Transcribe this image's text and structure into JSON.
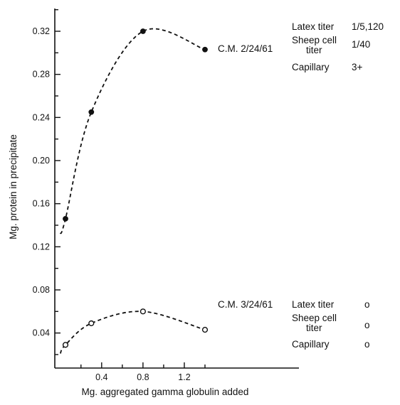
{
  "chart_data": {
    "type": "scatter",
    "title": "",
    "xlabel": "Mg. aggregated gamma globulin added",
    "ylabel": "Mg. protein in precipitate",
    "xlim": [
      0,
      1.8
    ],
    "ylim": [
      0,
      0.34
    ],
    "x_ticks": [
      0.4,
      0.8,
      1.2
    ],
    "x_tick_labels": [
      "0.4",
      "0.8",
      "1.2"
    ],
    "y_ticks": [
      0.04,
      0.08,
      0.12,
      0.16,
      0.2,
      0.24,
      0.28,
      0.32
    ],
    "y_tick_labels": [
      "0.04",
      "0.08",
      "0.12",
      "0.16",
      "0.20",
      "0.24",
      "0.28",
      "0.32"
    ],
    "grid": false,
    "series": [
      {
        "name": "C.M. 2/24/61",
        "marker": "filled-circle",
        "x": [
          0.05,
          0.3,
          0.8,
          1.4
        ],
        "y": [
          0.146,
          0.245,
          0.32,
          0.303
        ],
        "curve_x": [
          0.0,
          0.05,
          0.3,
          0.8,
          1.4
        ],
        "curve_y": [
          0.132,
          0.146,
          0.245,
          0.32,
          0.303
        ]
      },
      {
        "name": "C.M. 3/24/61",
        "marker": "open-circle",
        "x": [
          0.05,
          0.3,
          0.8,
          1.4
        ],
        "y": [
          0.029,
          0.049,
          0.06,
          0.043
        ],
        "curve_x": [
          0.0,
          0.05,
          0.3,
          0.8,
          1.4
        ],
        "curve_y": [
          0.021,
          0.029,
          0.049,
          0.06,
          0.043
        ]
      }
    ],
    "annotations": [
      {
        "label": "Latex titer",
        "value": "1/5,120"
      },
      {
        "label": "Sheep cell",
        "label2": "titer",
        "value": "1/40"
      },
      {
        "label": "Capillary",
        "value": "3+"
      },
      {
        "label": "Latex titer",
        "value": "o"
      },
      {
        "label": "Sheep cell",
        "label2": "titer",
        "value": "o"
      },
      {
        "label": "Capillary",
        "value": "o"
      }
    ]
  }
}
